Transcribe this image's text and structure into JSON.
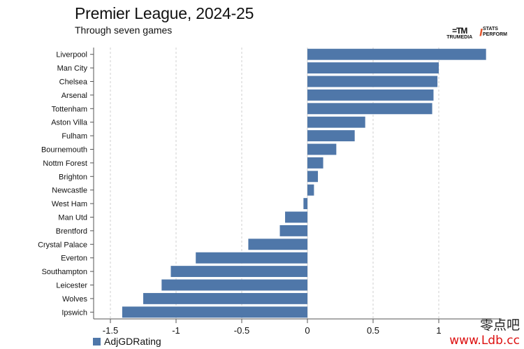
{
  "header": {
    "title": "Premier League, 2024-25",
    "subtitle": "Through seven games"
  },
  "logos": {
    "trumedia_mark": "=TM",
    "trumedia_text": "TRUMEDIA",
    "stats_line1": "STATS",
    "stats_line2": "PERFORM"
  },
  "watermark": {
    "chinese": "零点吧",
    "url": "www.Ldb.cc"
  },
  "colors": {
    "bar": "#4f77a9",
    "grid": "#cfcfcf",
    "axis": "#555555"
  },
  "chart_data": {
    "type": "bar",
    "orientation": "horizontal",
    "title": "Premier League, 2024-25",
    "subtitle": "Through seven games",
    "xlabel": "",
    "ylabel": "",
    "xlim": [
      -1.6,
      1.6
    ],
    "xticks": [
      -1.5,
      -1,
      -0.5,
      0,
      0.5,
      1
    ],
    "xtick_labels": [
      "-1.5",
      "-1",
      "-0.5",
      "0",
      "0.5",
      "1"
    ],
    "grid": "vertical-dashed",
    "legend": {
      "position": "bottom-left",
      "entries": [
        "AdjGDRating"
      ]
    },
    "categories": [
      "Liverpool",
      "Man City",
      "Chelsea",
      "Arsenal",
      "Tottenham",
      "Aston Villa",
      "Fulham",
      "Bournemouth",
      "Nottm Forest",
      "Brighton",
      "Newcastle",
      "West Ham",
      "Man Utd",
      "Brentford",
      "Crystal Palace",
      "Everton",
      "Southampton",
      "Leicester",
      "Wolves",
      "Ipswich"
    ],
    "series": [
      {
        "name": "AdjGDRating",
        "values": [
          1.36,
          1.0,
          0.99,
          0.96,
          0.95,
          0.44,
          0.36,
          0.22,
          0.12,
          0.08,
          0.05,
          -0.03,
          -0.17,
          -0.21,
          -0.45,
          -0.85,
          -1.04,
          -1.11,
          -1.25,
          -1.41
        ]
      }
    ]
  }
}
